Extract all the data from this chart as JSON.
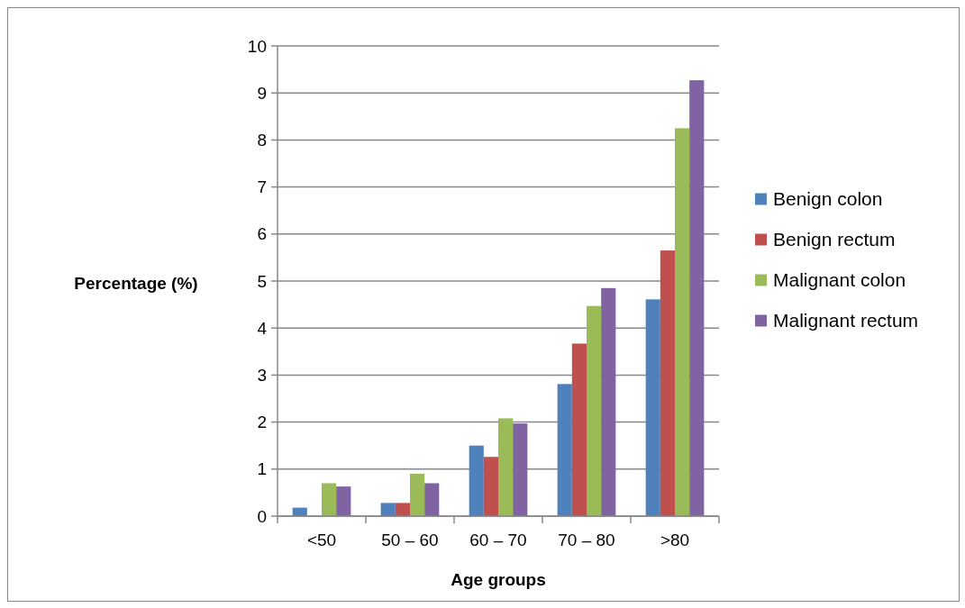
{
  "chart_data": {
    "type": "bar",
    "xlabel": "Age groups",
    "ylabel": "Percentage (%)",
    "categories": [
      "<50",
      "50 – 60",
      "60 – 70",
      "70 – 80",
      ">80"
    ],
    "series": [
      {
        "name": "Benign colon",
        "color": "#4f81bd",
        "values": [
          0.18,
          0.28,
          1.5,
          2.81,
          4.61
        ]
      },
      {
        "name": "Benign rectum",
        "color": "#c0504d",
        "values": [
          0,
          0.28,
          1.26,
          3.67,
          5.65
        ]
      },
      {
        "name": "Malignant colon",
        "color": "#9bbb59",
        "values": [
          0.7,
          0.9,
          2.08,
          4.47,
          8.25
        ]
      },
      {
        "name": "Malignant rectum",
        "color": "#8064a2",
        "values": [
          0.63,
          0.7,
          1.97,
          4.85,
          9.27
        ]
      }
    ],
    "ylim": [
      0,
      10
    ],
    "yticks": [
      0,
      1,
      2,
      3,
      4,
      5,
      6,
      7,
      8,
      9,
      10
    ],
    "grid": "y",
    "legend": "right"
  }
}
